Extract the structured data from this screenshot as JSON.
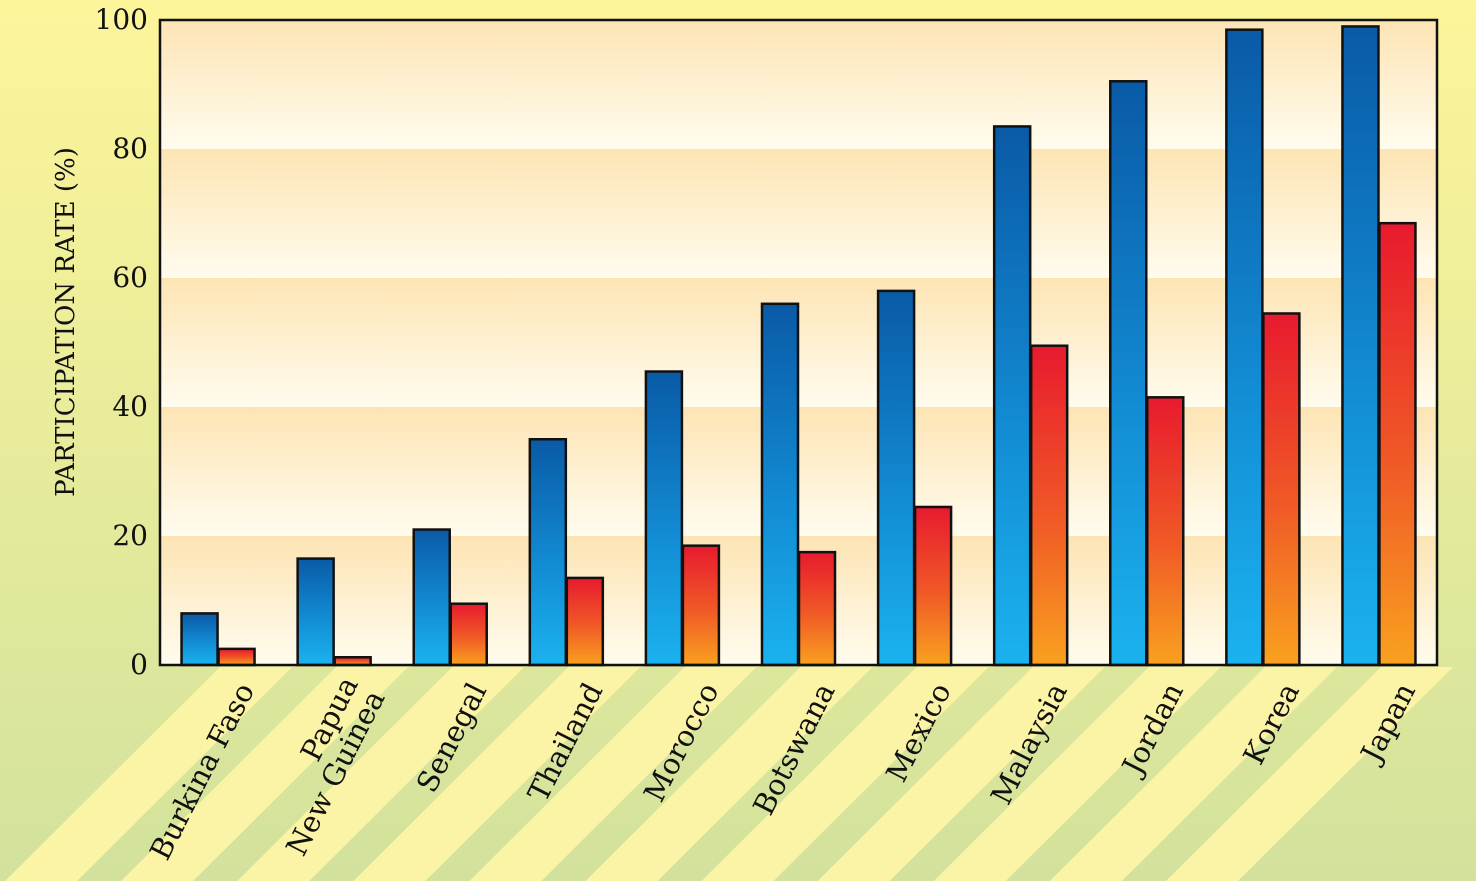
{
  "chart_data": {
    "type": "bar",
    "title": "",
    "xlabel": "",
    "ylabel": "PARTICIPATION RATE (%)",
    "ylim": [
      0,
      100
    ],
    "yticks": [
      0,
      20,
      40,
      60,
      80,
      100
    ],
    "grid": "horizontal alternating bands",
    "legend": "none",
    "categories": [
      "Burkina Faso",
      "Papua New Guinea",
      "Senegal",
      "Thailand",
      "Morocco",
      "Botswana",
      "Mexico",
      "Malaysia",
      "Jordan",
      "Korea",
      "Japan"
    ],
    "series": [
      {
        "color": "#0a5aa6",
        "values": [
          8,
          16.5,
          21,
          35,
          45.5,
          56,
          58,
          83.5,
          90.5,
          98.5,
          99
        ]
      },
      {
        "color": "#e8202a",
        "values": [
          2.5,
          1.2,
          9.5,
          13.5,
          18.5,
          17.5,
          24.5,
          49.5,
          41.5,
          54.5,
          68.5
        ]
      }
    ]
  },
  "colors": {
    "background_top": "#fdf59a",
    "background_bottom": "#d2e29c",
    "plot_band_light": "#fffcee",
    "plot_band_dark": "#fde4b4",
    "stripe_yellow": "#fbf3a6",
    "bar_blue_top": "#0a5aa6",
    "bar_blue_bottom": "#1bb2ef",
    "bar_red_top": "#e81a2e",
    "bar_red_bottom": "#f9a11f"
  }
}
